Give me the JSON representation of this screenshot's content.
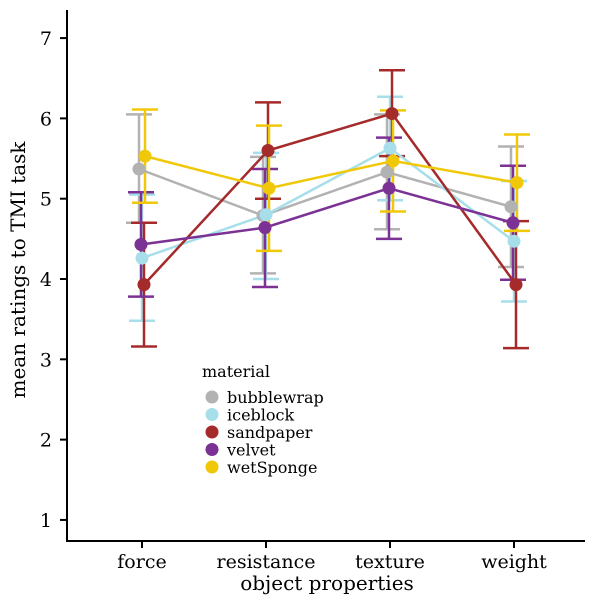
{
  "chart_data": {
    "type": "line",
    "title": "",
    "xlabel": "object properties",
    "ylabel": "mean ratings to TMI task",
    "categories": [
      "force",
      "resistance",
      "texture",
      "weight"
    ],
    "ylim": [
      0.8,
      7.25
    ],
    "yticks": [
      1,
      2,
      3,
      4,
      5,
      6,
      7
    ],
    "grid": false,
    "error_bars": true,
    "legend": {
      "title": "material",
      "position": "inside-bottom-left"
    },
    "series": [
      {
        "name": "bubblewrap",
        "color": "#b2b2b2",
        "values": [
          5.37,
          4.79,
          5.33,
          4.9
        ],
        "lower": [
          4.7,
          4.07,
          4.62,
          4.15
        ],
        "upper": [
          6.05,
          5.52,
          6.05,
          5.65
        ]
      },
      {
        "name": "iceblock",
        "color": "#a6dfea",
        "values": [
          4.26,
          4.8,
          5.63,
          4.47
        ],
        "lower": [
          3.48,
          4.0,
          4.98,
          3.72
        ],
        "upper": [
          5.05,
          5.57,
          6.27,
          5.22
        ]
      },
      {
        "name": "sandpaper",
        "color": "#a52a2a",
        "values": [
          3.93,
          5.6,
          6.06,
          3.93
        ],
        "lower": [
          3.16,
          5.0,
          5.53,
          3.14
        ],
        "upper": [
          4.7,
          6.2,
          6.6,
          4.72
        ]
      },
      {
        "name": "velvet",
        "color": "#7b3294",
        "values": [
          4.43,
          4.64,
          5.13,
          4.7
        ],
        "lower": [
          3.78,
          3.9,
          4.5,
          3.99
        ],
        "upper": [
          5.08,
          5.37,
          5.76,
          5.41
        ]
      },
      {
        "name": "wetSponge",
        "color": "#f0c808",
        "values": [
          5.53,
          5.13,
          5.47,
          5.2
        ],
        "lower": [
          4.95,
          4.35,
          4.84,
          4.6
        ],
        "upper": [
          6.11,
          5.91,
          6.1,
          5.8
        ]
      }
    ]
  }
}
